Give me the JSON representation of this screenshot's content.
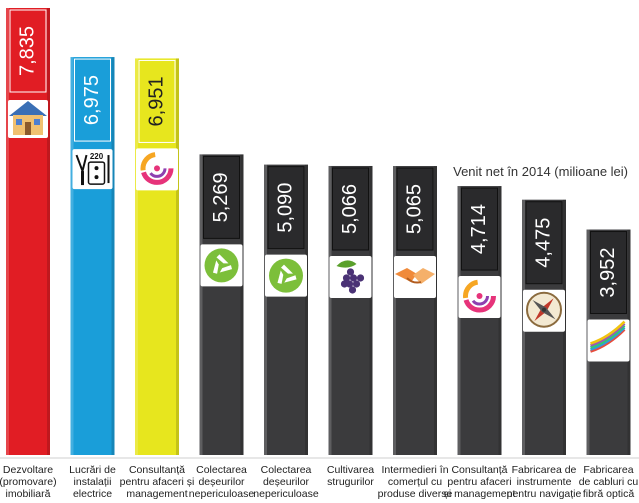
{
  "chart_data": {
    "type": "bar",
    "title": "Venit net în 2014 (milioane lei)",
    "categories": [
      [
        "Dezvoltare",
        "(promovare)",
        "imobiliară"
      ],
      [
        "Lucrări de",
        "instalații",
        "electrice"
      ],
      [
        "Consultanță",
        "pentru afaceri și",
        "management"
      ],
      [
        "Colectarea",
        "deșeurilor",
        "nepericuloase"
      ],
      [
        "Colectarea",
        "deșeurilor",
        "nepericuloase"
      ],
      [
        "Cultivarea",
        "strugurilor"
      ],
      [
        "Intermedieri în",
        "comerțul cu",
        "produse diverse"
      ],
      [
        "Consultanță",
        "pentru afaceri",
        "și management"
      ],
      [
        "Fabricarea de",
        "instrumente",
        "pentru navigație"
      ],
      [
        "Fabricarea",
        "de cabluri cu",
        "fibră optică"
      ]
    ],
    "values": [
      7835,
      6975,
      6951,
      5269,
      5090,
      5066,
      5065,
      4714,
      4475,
      3952
    ],
    "value_labels": [
      "7,835",
      "6,975",
      "6,951",
      "5,269",
      "5,090",
      "5,066",
      "5,065",
      "4,714",
      "4,475",
      "3,952"
    ],
    "icons": [
      "house-icon",
      "electrical-tools-icon",
      "consulting-chart-icon",
      "recycle-icon",
      "recycle-icon",
      "grapes-icon",
      "handshake-icon",
      "consulting-chart-icon",
      "compass-icon",
      "fiber-cable-icon"
    ],
    "bar_colors": [
      "#e11d24",
      "#1a9ed9",
      "#e7e61e",
      "#3b3b3d",
      "#3b3b3d",
      "#3b3b3d",
      "#3b3b3d",
      "#3b3b3d",
      "#3b3b3d",
      "#3b3b3d"
    ],
    "label_box_colors": [
      "#e11d24",
      "#1a9ed9",
      "#e7e61e",
      "#2a2a2c",
      "#2a2a2c",
      "#2a2a2c",
      "#2a2a2c",
      "#2a2a2c",
      "#2a2a2c",
      "#2a2a2c"
    ],
    "label_text_colors": [
      "#ffffff",
      "#ffffff",
      "#222222",
      "#ffffff",
      "#ffffff",
      "#ffffff",
      "#ffffff",
      "#ffffff",
      "#ffffff",
      "#ffffff"
    ],
    "ylim": [
      0,
      7835
    ],
    "grid": false,
    "legend": "none"
  }
}
